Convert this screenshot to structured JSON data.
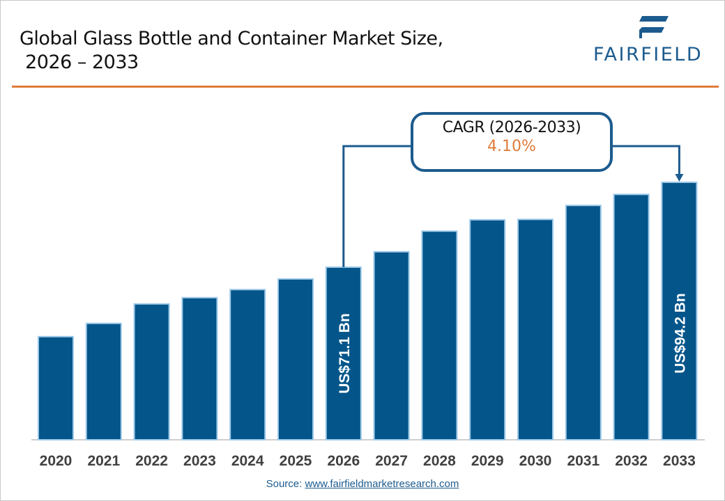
{
  "header": {
    "title": "Global Glass Bottle and Container Market Size,\n 2026 – 2033",
    "logo_text": "FAIRFIELD"
  },
  "colors": {
    "bar": "#03558a",
    "bar_outline": "#9cc8e8",
    "accent": "#e07b39",
    "brand": "#1c5b8e"
  },
  "chart_data": {
    "type": "bar",
    "title": "Global Glass Bottle and Container Market Size, 2026 – 2033",
    "categories": [
      "2020",
      "2021",
      "2022",
      "2023",
      "2024",
      "2025",
      "2026",
      "2027",
      "2028",
      "2029",
      "2030",
      "2031",
      "2032",
      "2033"
    ],
    "values": [
      52.2,
      55.8,
      61.1,
      62.8,
      65.0,
      67.9,
      71.1,
      75.3,
      80.9,
      84.0,
      84.1,
      87.9,
      90.9,
      94.2
    ],
    "ylim": [
      24,
      100
    ],
    "grid": false,
    "data_labels": [
      {
        "category": "2026",
        "text": "US$71.1 Bn"
      },
      {
        "category": "2033",
        "text": "US$94.2 Bn"
      }
    ],
    "annotation": {
      "label": "CAGR (2026-2033)",
      "value": "4.10%"
    }
  },
  "footer": {
    "source_label": "Source: ",
    "source_link": "www.fairfieldmarketresearch.com"
  }
}
